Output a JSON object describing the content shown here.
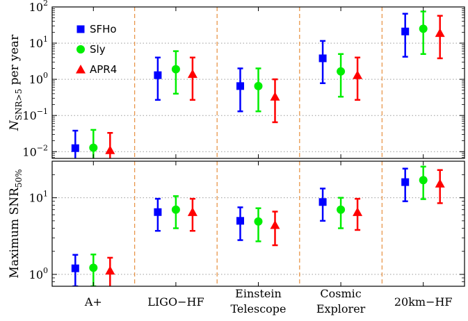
{
  "chart_data": {
    "type": "errorbar",
    "categories": [
      {
        "lines": [
          "A+"
        ]
      },
      {
        "lines": [
          "LIGO−HF"
        ]
      },
      {
        "lines": [
          "Einstein",
          "Telescope"
        ]
      },
      {
        "lines": [
          "Cosmic",
          "Explorer"
        ]
      },
      {
        "lines": [
          "20km−HF"
        ]
      }
    ],
    "series": [
      {
        "name": "SFHo",
        "color": "#0000ff",
        "marker": "square"
      },
      {
        "name": "Sly",
        "color": "#00ee00",
        "marker": "circle"
      },
      {
        "name": "APR4",
        "color": "#ff0000",
        "marker": "triangle"
      }
    ],
    "legend": "top-left",
    "separator_color": "#e8964a",
    "panels": [
      {
        "ylabel_main": "N",
        "ylabel_sub": "SNR>5",
        "ylabel_rest": " per year",
        "yscale": "log",
        "ylim": [
          0.0065,
          100
        ],
        "yticks": [
          {
            "value": 0.01,
            "mant": "10",
            "exp": "−2"
          },
          {
            "value": 0.1,
            "mant": "10",
            "exp": "−1"
          },
          {
            "value": 1,
            "mant": "10",
            "exp": "0"
          },
          {
            "value": 10,
            "mant": "10",
            "exp": "1"
          },
          {
            "value": 100,
            "mant": "10",
            "exp": "2"
          }
        ],
        "grid": [
          0.01,
          0.1,
          1,
          10
        ],
        "data": [
          [
            [
              0.0125,
              0.005,
              0.038
            ],
            [
              0.0128,
              0.005,
              0.04
            ],
            [
              0.011,
              0.004,
              0.033
            ]
          ],
          [
            [
              1.3,
              0.27,
              4.0
            ],
            [
              1.9,
              0.4,
              6.0
            ],
            [
              1.4,
              0.27,
              4.0
            ]
          ],
          [
            [
              0.65,
              0.13,
              2.0
            ],
            [
              0.65,
              0.13,
              2.0
            ],
            [
              0.33,
              0.065,
              1.0
            ]
          ],
          [
            [
              3.8,
              0.78,
              11.5
            ],
            [
              1.65,
              0.33,
              5.0
            ],
            [
              1.3,
              0.27,
              4.0
            ]
          ],
          [
            [
              21,
              4.2,
              65
            ],
            [
              25,
              5.0,
              75
            ],
            [
              19,
              3.8,
              57
            ]
          ]
        ]
      },
      {
        "ylabel_main": "Maximum SNR",
        "ylabel_sub": "50%",
        "ylabel_rest": "",
        "yscale": "log",
        "ylim": [
          0.7,
          30
        ],
        "yticks": [
          {
            "value": 1,
            "mant": "10",
            "exp": "0"
          },
          {
            "value": 10,
            "mant": "10",
            "exp": "1"
          }
        ],
        "grid": [
          1,
          10
        ],
        "data": [
          [
            [
              1.2,
              0.7,
              1.8
            ],
            [
              1.22,
              0.7,
              1.82
            ],
            [
              1.12,
              0.6,
              1.65
            ]
          ],
          [
            [
              6.5,
              3.7,
              9.7
            ],
            [
              7.0,
              4.0,
              10.5
            ],
            [
              6.5,
              3.7,
              9.7
            ]
          ],
          [
            [
              5.0,
              2.8,
              7.5
            ],
            [
              4.9,
              2.7,
              7.3
            ],
            [
              4.4,
              2.4,
              6.6
            ]
          ],
          [
            [
              8.8,
              5.0,
              13.2
            ],
            [
              7.0,
              4.0,
              10.0
            ],
            [
              6.5,
              3.8,
              9.7
            ]
          ],
          [
            [
              16.0,
              9.0,
              24.0
            ],
            [
              17.0,
              9.6,
              25.5
            ],
            [
              15.3,
              8.5,
              23.0
            ]
          ]
        ]
      }
    ]
  }
}
